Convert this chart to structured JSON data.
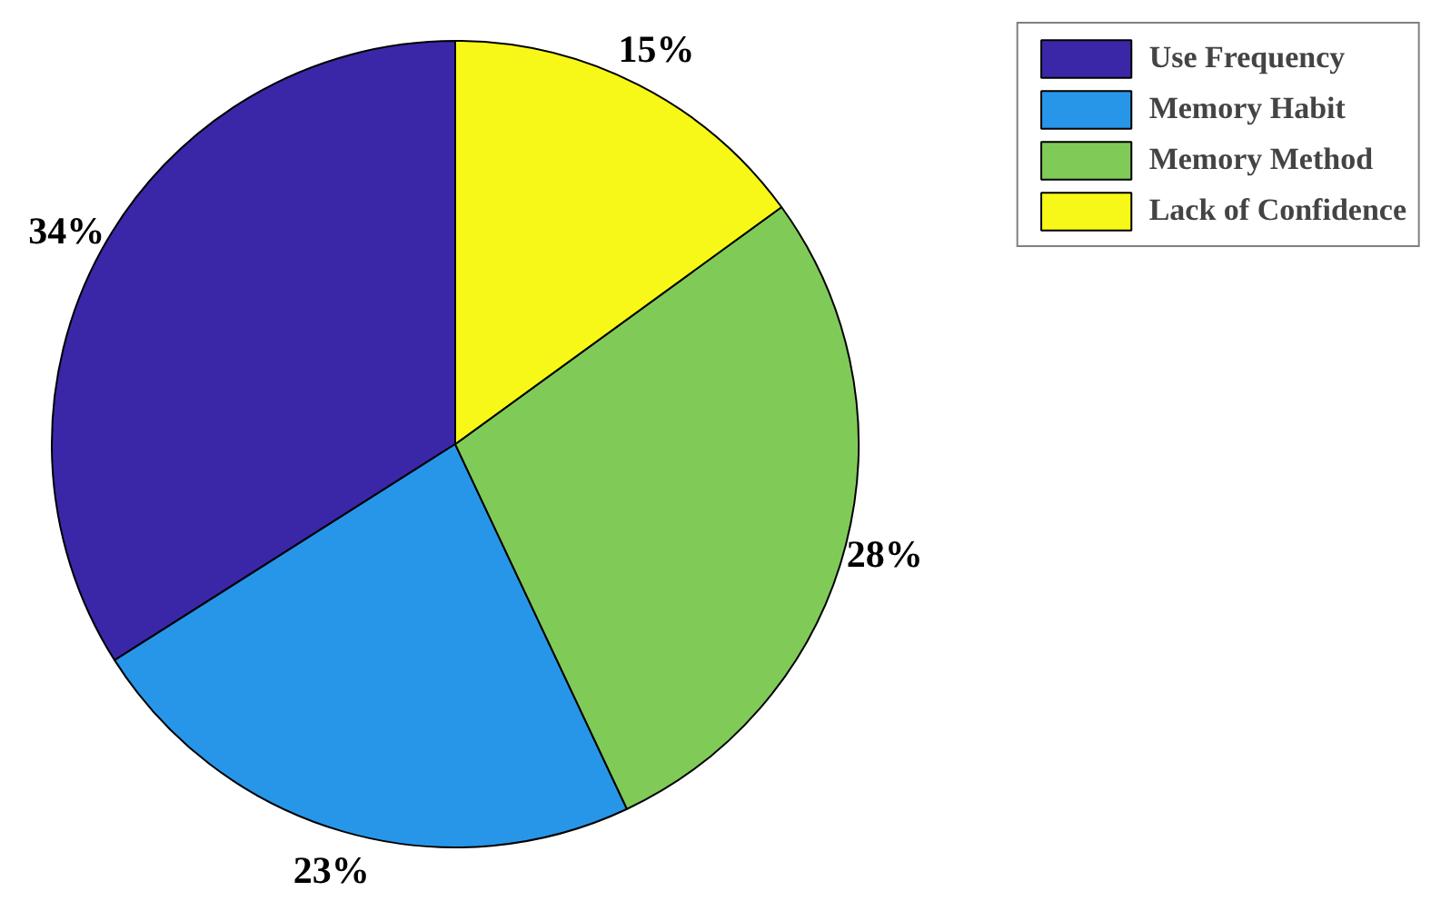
{
  "chart_data": {
    "type": "pie",
    "categories": [
      "Use Frequency",
      "Memory Habit",
      "Memory Method",
      "Lack of Confidence"
    ],
    "values": [
      34,
      23,
      28,
      15
    ],
    "colors": [
      "#3a27a8",
      "#2896e8",
      "#80cb58",
      "#f8f818"
    ],
    "value_labels": [
      "34%",
      "23%",
      "28%",
      "15%"
    ],
    "legend": "top right"
  }
}
